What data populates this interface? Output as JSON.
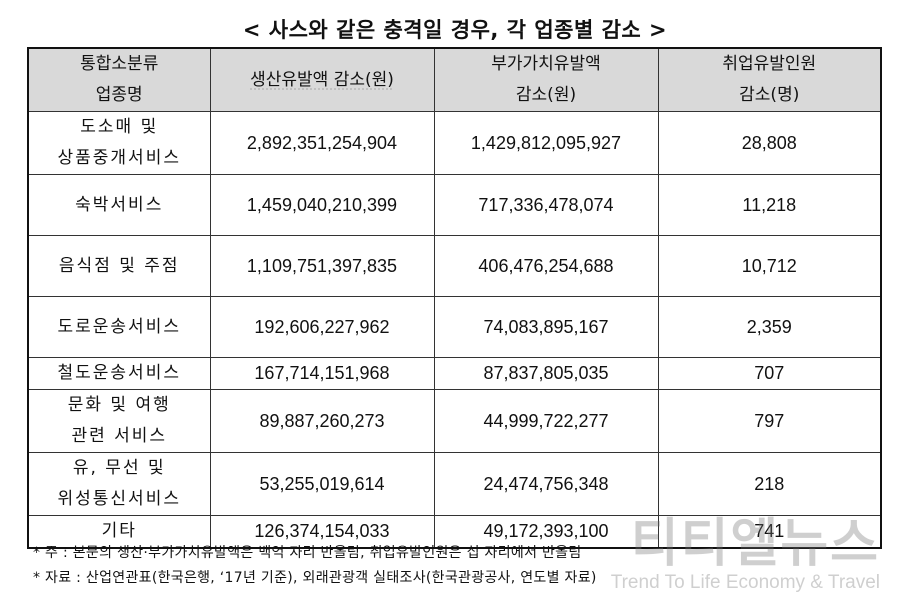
{
  "title": "< 사스와 같은 충격일 경우, 각 업종별 감소 >",
  "header": {
    "col1": [
      "통합소분류",
      "업종명"
    ],
    "col2": [
      "생산유발액 감소(원)"
    ],
    "col3": [
      "부가가치유발액",
      "감소(원)"
    ],
    "col4": [
      "취업유발인원",
      "감소(명)"
    ]
  },
  "rows": [
    {
      "category": [
        "도소매 및",
        "상품중개서비스"
      ],
      "production": "2,892,351,254,904",
      "value_added": "1,429,812,095,927",
      "employment": "28,808"
    },
    {
      "category": [
        "숙박서비스"
      ],
      "production": "1,459,040,210,399",
      "value_added": "717,336,478,074",
      "employment": "11,218"
    },
    {
      "category": [
        "음식점 및 주점"
      ],
      "production": "1,109,751,397,835",
      "value_added": "406,476,254,688",
      "employment": "10,712"
    },
    {
      "category": [
        "도로운송서비스"
      ],
      "production": "192,606,227,962",
      "value_added": "74,083,895,167",
      "employment": "2,359"
    },
    {
      "category": [
        "철도운송서비스"
      ],
      "production": "167,714,151,968",
      "value_added": "87,837,805,035",
      "employment": "707"
    },
    {
      "category": [
        "문화 및 여행",
        "관련 서비스"
      ],
      "production": "89,887,260,273",
      "value_added": "44,999,722,277",
      "employment": "797"
    },
    {
      "category": [
        "유, 무선 및",
        "위성통신서비스"
      ],
      "production": "53,255,019,614",
      "value_added": "24,474,756,348",
      "employment": "218"
    },
    {
      "category": [
        "기타"
      ],
      "production": "126,374,154,033",
      "value_added": "49,172,393,100",
      "employment": "741"
    }
  ],
  "notes": [
    "* 주 : 본문의 생산·부가가치유발액은 백억 자리 반올림, 취업유발인원은 십 자리에서 반올림",
    "* 자료 : 산업연관표(한국은행, ‘17년 기준), 외래관광객 실태조사(한국관광공사, 연도별 자료)"
  ],
  "watermark": {
    "logo": "티티엘뉴스",
    "tagline": "Trend To Life Economy & Travel"
  }
}
